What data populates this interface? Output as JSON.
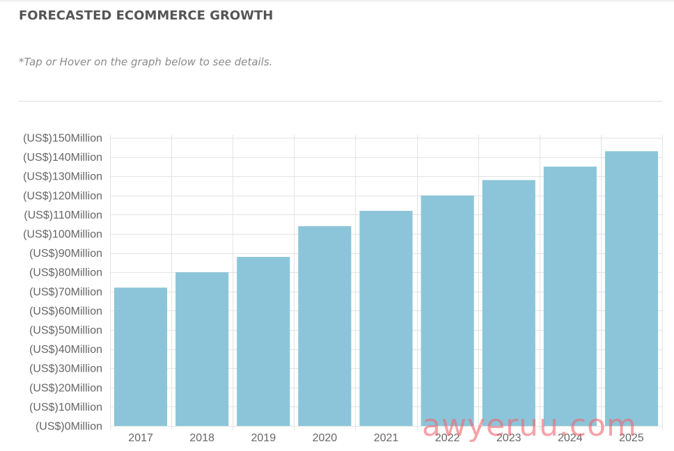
{
  "header": {
    "title": "FORECASTED ECOMMERCE GROWTH",
    "note": "*Tap or Hover on the graph below to see details."
  },
  "watermark": "awyeruu.com",
  "colors": {
    "bar": "#8cc5d9",
    "grid": "#e3e3e3",
    "title": "#555555",
    "note": "#8a8a8a",
    "tick_text": "#666666"
  },
  "chart_data": {
    "type": "bar",
    "title": "FORECASTED ECOMMERCE GROWTH",
    "xlabel": "",
    "ylabel": "",
    "categories": [
      "2017",
      "2018",
      "2019",
      "2020",
      "2021",
      "2022",
      "2023",
      "2024",
      "2025"
    ],
    "values": [
      72,
      80,
      88,
      104,
      112,
      120,
      128,
      135,
      143
    ],
    "ylim": [
      0,
      150
    ],
    "yticks": [
      0,
      10,
      20,
      30,
      40,
      50,
      60,
      70,
      80,
      90,
      100,
      110,
      120,
      130,
      140,
      150
    ],
    "ytick_labels": [
      "(US$)0Million",
      "(US$)10Million",
      "(US$)20Million",
      "(US$)30Million",
      "(US$)40Million",
      "(US$)50Million",
      "(US$)60Million",
      "(US$)70Million",
      "(US$)80Million",
      "(US$)90Million",
      "(US$)100Million",
      "(US$)110Million",
      "(US$)120Million",
      "(US$)130Million",
      "(US$)140Million",
      "(US$)150Million"
    ],
    "grid": true,
    "legend": "none"
  }
}
